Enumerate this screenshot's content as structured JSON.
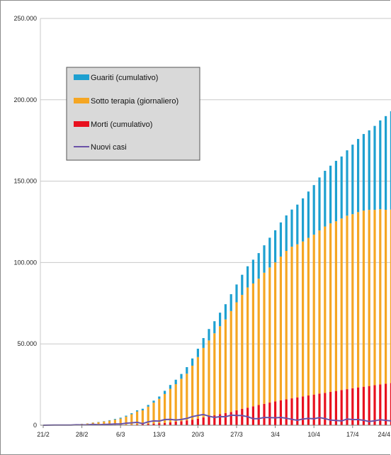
{
  "chart_data": {
    "type": "bar",
    "title": "",
    "xlabel": "",
    "ylabel": "",
    "ylim": [
      0,
      250000
    ],
    "yticks": [
      0,
      50000,
      100000,
      150000,
      200000,
      250000
    ],
    "ytick_labels": [
      "0",
      "50.000",
      "100.000",
      "150.000",
      "200.000",
      "250.000"
    ],
    "xtick_labels": [
      "21/2",
      "28/2",
      "6/3",
      "13/3",
      "20/3",
      "27/3",
      "3/4",
      "10/4",
      "17/4",
      "24/4"
    ],
    "grid": true,
    "legend_position": "top-left",
    "stacked": true,
    "x": [
      "21/2",
      "22/2",
      "23/2",
      "24/2",
      "25/2",
      "26/2",
      "27/2",
      "28/2",
      "29/2",
      "1/3",
      "2/3",
      "3/3",
      "4/3",
      "5/3",
      "6/3",
      "7/3",
      "8/3",
      "9/3",
      "10/3",
      "11/3",
      "12/3",
      "13/3",
      "14/3",
      "15/3",
      "16/3",
      "17/3",
      "18/3",
      "19/3",
      "20/3",
      "21/3",
      "22/3",
      "23/3",
      "24/3",
      "25/3",
      "26/3",
      "27/3",
      "28/3",
      "29/3",
      "30/3",
      "31/3",
      "1/4",
      "2/4",
      "3/4",
      "4/4",
      "5/4",
      "6/4",
      "7/4",
      "8/4",
      "9/4",
      "10/4",
      "11/4",
      "12/4",
      "13/4",
      "14/4",
      "15/4",
      "16/4",
      "17/4",
      "18/4",
      "19/4",
      "20/4",
      "21/4",
      "22/4",
      "23/4",
      "24/4"
    ],
    "series": [
      {
        "name": "Morti (cumulativo)",
        "color": "#e8101e",
        "values": [
          1,
          2,
          3,
          7,
          10,
          12,
          17,
          21,
          29,
          34,
          52,
          79,
          107,
          148,
          197,
          233,
          366,
          463,
          631,
          827,
          1016,
          1266,
          1441,
          1809,
          2158,
          2503,
          2978,
          3405,
          4032,
          4825,
          5476,
          6077,
          6820,
          7503,
          8165,
          9134,
          10023,
          10779,
          11591,
          12428,
          13155,
          13915,
          14681,
          15362,
          15887,
          16523,
          17127,
          17669,
          18279,
          18849,
          19468,
          19899,
          20465,
          21067,
          21645,
          22170,
          22745,
          23227,
          23660,
          24114,
          24648,
          25085,
          25549,
          25969
        ]
      },
      {
        "name": "Sotto terapia (giornaliero)",
        "color": "#f5a623",
        "values": [
          19,
          74,
          150,
          221,
          311,
          385,
          588,
          821,
          1049,
          1577,
          1835,
          2263,
          2706,
          3296,
          3916,
          5061,
          6387,
          7985,
          8514,
          10590,
          12839,
          14955,
          17750,
          20603,
          23073,
          26062,
          28710,
          33190,
          37860,
          42681,
          46638,
          50418,
          54030,
          57521,
          62013,
          66414,
          70065,
          73880,
          75528,
          77635,
          80572,
          83049,
          85388,
          88274,
          91246,
          93187,
          94067,
          95262,
          96877,
          98273,
          100269,
          102253,
          103616,
          104291,
          105418,
          106607,
          106962,
          107771,
          108257,
          108237,
          107709,
          107699,
          106848,
          106527
        ]
      },
      {
        "name": "Guariti (cumulativo)",
        "color": "#1ea0d0",
        "values": [
          0,
          0,
          0,
          1,
          1,
          3,
          45,
          46,
          50,
          83,
          149,
          160,
          276,
          414,
          523,
          589,
          622,
          724,
          1004,
          1045,
          1258,
          1439,
          1966,
          2335,
          2749,
          2941,
          4025,
          4440,
          5129,
          6072,
          7024,
          7432,
          8326,
          9362,
          10361,
          10950,
          12384,
          13030,
          14620,
          15729,
          16847,
          18278,
          19758,
          20996,
          21815,
          22837,
          24392,
          26491,
          28470,
          30455,
          32534,
          34211,
          35435,
          37130,
          38092,
          40164,
          42727,
          44927,
          47055,
          48877,
          51600,
          54543,
          57576,
          60498
        ]
      },
      {
        "name": "Nuovi casi",
        "color": "#6a52a8",
        "values": [
          20,
          60,
          70,
          90,
          100,
          100,
          250,
          230,
          240,
          570,
          340,
          470,
          590,
          780,
          780,
          1250,
          1490,
          1800,
          980,
          2100,
          2650,
          2550,
          3500,
          3590,
          3230,
          3520,
          4200,
          5320,
          5990,
          6560,
          5560,
          4790,
          5250,
          5210,
          6200,
          5960,
          5970,
          5220,
          4050,
          4050,
          4780,
          4670,
          4590,
          4800,
          4300,
          3600,
          3040,
          3840,
          4200,
          3950,
          4690,
          4090,
          3150,
          2970,
          2660,
          3790,
          3490,
          3490,
          3050,
          2250,
          2730,
          3370,
          3020,
          2650
        ]
      }
    ]
  }
}
